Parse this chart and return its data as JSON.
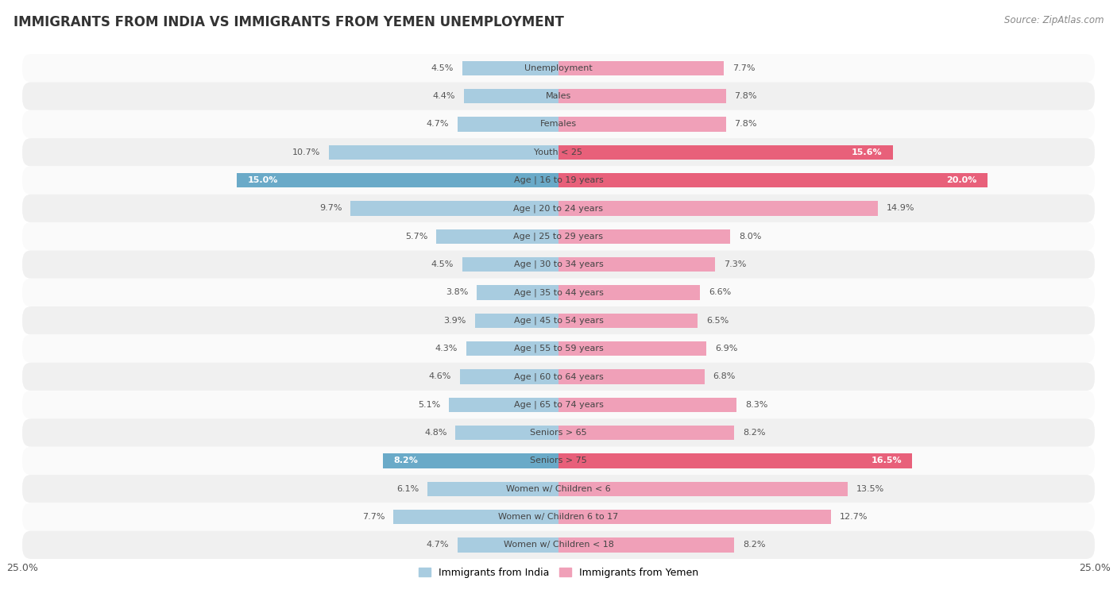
{
  "title": "IMMIGRANTS FROM INDIA VS IMMIGRANTS FROM YEMEN UNEMPLOYMENT",
  "source": "Source: ZipAtlas.com",
  "categories": [
    "Unemployment",
    "Males",
    "Females",
    "Youth < 25",
    "Age | 16 to 19 years",
    "Age | 20 to 24 years",
    "Age | 25 to 29 years",
    "Age | 30 to 34 years",
    "Age | 35 to 44 years",
    "Age | 45 to 54 years",
    "Age | 55 to 59 years",
    "Age | 60 to 64 years",
    "Age | 65 to 74 years",
    "Seniors > 65",
    "Seniors > 75",
    "Women w/ Children < 6",
    "Women w/ Children 6 to 17",
    "Women w/ Children < 18"
  ],
  "india_values": [
    4.5,
    4.4,
    4.7,
    10.7,
    15.0,
    9.7,
    5.7,
    4.5,
    3.8,
    3.9,
    4.3,
    4.6,
    5.1,
    4.8,
    8.2,
    6.1,
    7.7,
    4.7
  ],
  "yemen_values": [
    7.7,
    7.8,
    7.8,
    15.6,
    20.0,
    14.9,
    8.0,
    7.3,
    6.6,
    6.5,
    6.9,
    6.8,
    8.3,
    8.2,
    16.5,
    13.5,
    12.7,
    8.2
  ],
  "india_color": "#A8CCE0",
  "yemen_color": "#F0A0B8",
  "india_highlight_color": "#6AAAC8",
  "yemen_highlight_color": "#E8607A",
  "row_color_odd": "#f0f0f0",
  "row_color_even": "#fafafa",
  "axis_limit": 25.0,
  "india_label": "Immigrants from India",
  "yemen_label": "Immigrants from Yemen",
  "title_fontsize": 12,
  "source_fontsize": 8.5,
  "bar_height": 0.52,
  "label_fontsize": 8,
  "value_label_fontsize": 8,
  "india_highlight_rows": [
    4,
    14
  ],
  "yemen_highlight_rows": [
    3,
    4,
    14
  ],
  "value_in_bar_rows_india": [
    4,
    14
  ],
  "value_in_bar_rows_yemen": [
    3,
    4,
    14
  ]
}
